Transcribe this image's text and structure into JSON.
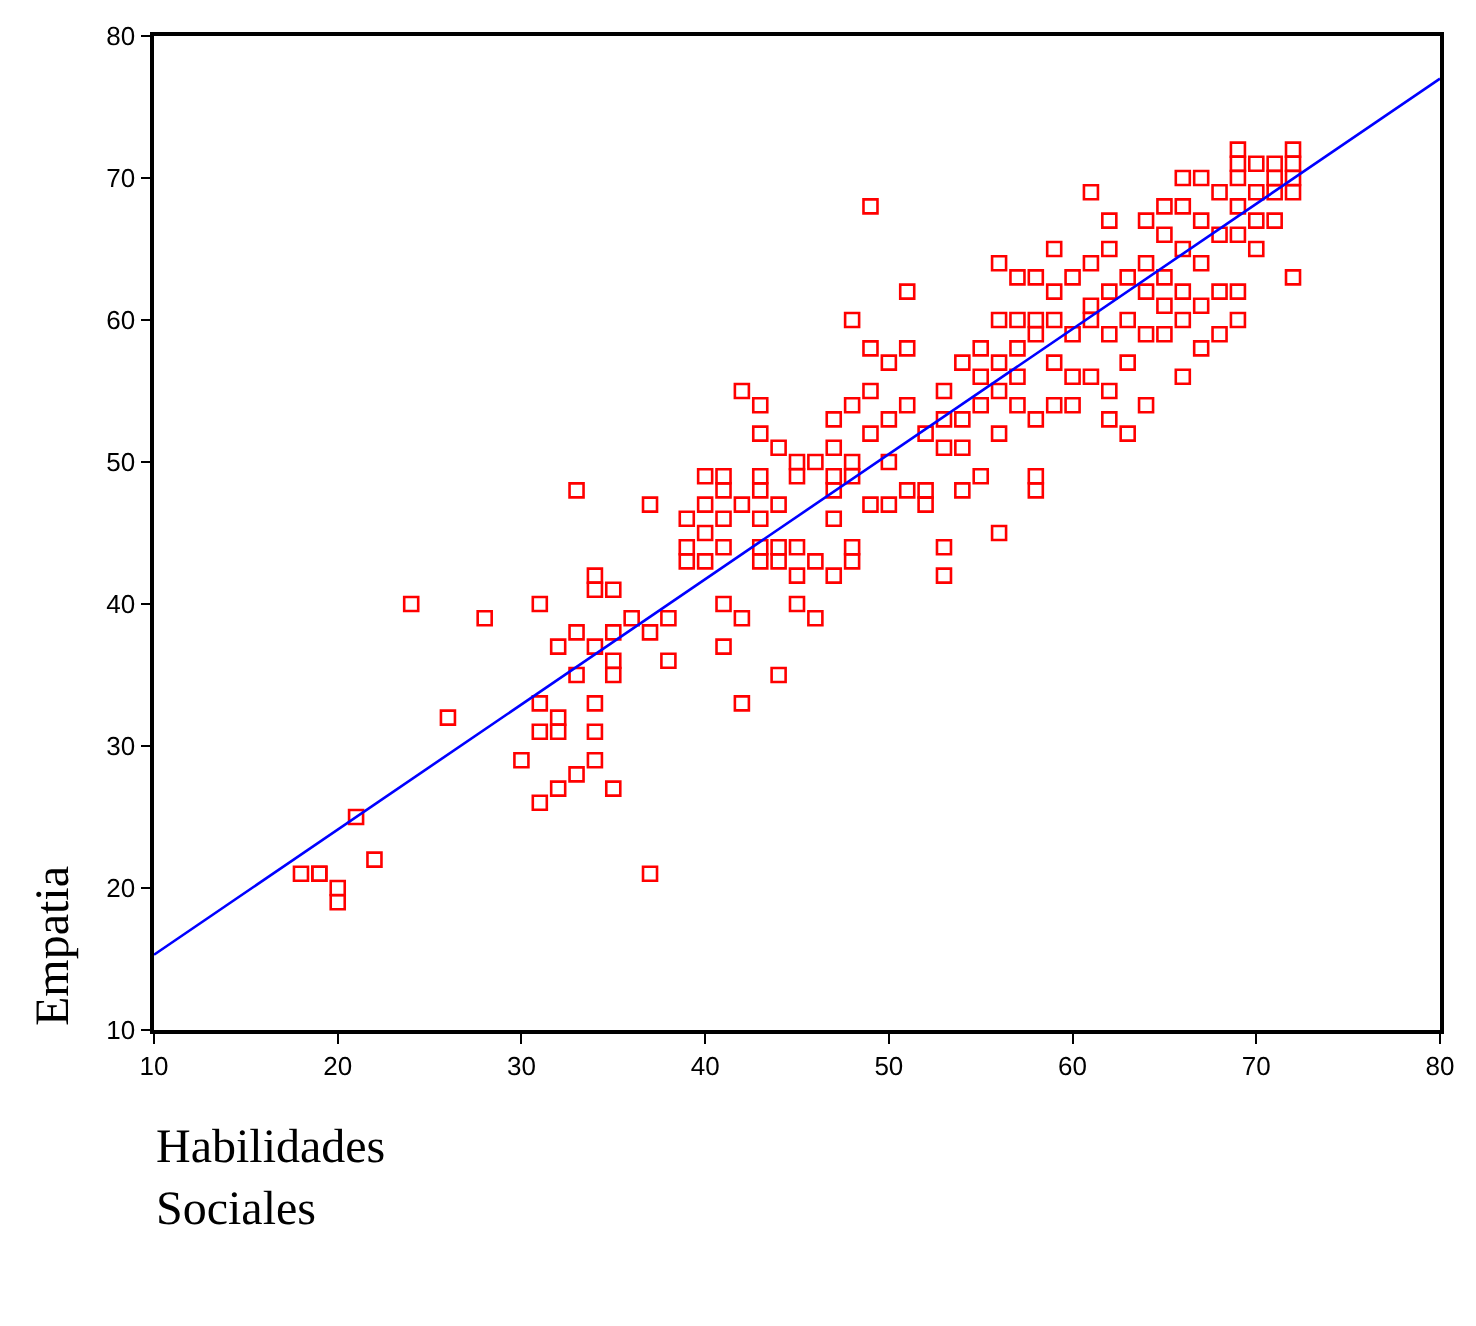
{
  "chart_data": {
    "type": "scatter",
    "xlabel": "Habilidades\nSociales",
    "ylabel": "Empatia",
    "xlim": [
      10,
      80
    ],
    "ylim": [
      10,
      80
    ],
    "xticks": [
      10,
      20,
      30,
      40,
      50,
      60,
      70,
      80
    ],
    "yticks": [
      10,
      20,
      30,
      40,
      50,
      60,
      70,
      80
    ],
    "marker": "square",
    "series": [
      {
        "color": "#ff0000",
        "x": [
          18,
          19,
          19,
          20,
          20,
          21,
          22,
          24,
          26,
          28,
          30,
          31,
          31,
          31,
          31,
          32,
          32,
          32,
          32,
          33,
          33,
          33,
          33,
          34,
          34,
          34,
          34,
          34,
          34,
          35,
          35,
          35,
          35,
          35,
          36,
          37,
          37,
          37,
          38,
          38,
          39,
          39,
          39,
          40,
          40,
          40,
          40,
          41,
          41,
          41,
          41,
          41,
          41,
          42,
          42,
          42,
          42,
          43,
          43,
          43,
          43,
          43,
          43,
          43,
          44,
          44,
          44,
          44,
          44,
          45,
          45,
          45,
          45,
          45,
          46,
          46,
          46,
          47,
          47,
          47,
          47,
          47,
          47,
          48,
          48,
          48,
          48,
          48,
          48,
          49,
          49,
          49,
          49,
          49,
          50,
          50,
          50,
          50,
          51,
          51,
          51,
          51,
          52,
          52,
          52,
          53,
          53,
          53,
          53,
          53,
          54,
          54,
          54,
          54,
          55,
          55,
          55,
          55,
          56,
          56,
          56,
          56,
          56,
          56,
          57,
          57,
          57,
          57,
          57,
          58,
          58,
          58,
          58,
          58,
          58,
          59,
          59,
          59,
          59,
          59,
          60,
          60,
          60,
          60,
          61,
          61,
          61,
          61,
          61,
          62,
          62,
          62,
          62,
          62,
          62,
          63,
          63,
          63,
          63,
          64,
          64,
          64,
          64,
          64,
          65,
          65,
          65,
          65,
          65,
          66,
          66,
          66,
          66,
          66,
          66,
          67,
          67,
          67,
          67,
          67,
          68,
          68,
          68,
          68,
          69,
          69,
          69,
          69,
          69,
          69,
          69,
          70,
          70,
          70,
          70,
          71,
          71,
          71,
          71,
          72,
          72,
          72,
          72,
          72
        ],
        "values": [
          21,
          21,
          21,
          20,
          19,
          25,
          22,
          40,
          32,
          39,
          29,
          40,
          33,
          31,
          26,
          37,
          32,
          31,
          27,
          48,
          38,
          35,
          28,
          42,
          41,
          37,
          33,
          31,
          29,
          41,
          38,
          36,
          35,
          27,
          39,
          47,
          38,
          21,
          39,
          36,
          46,
          44,
          43,
          49,
          47,
          45,
          43,
          49,
          48,
          46,
          44,
          40,
          37,
          55,
          47,
          39,
          33,
          54,
          52,
          49,
          48,
          46,
          44,
          43,
          51,
          47,
          44,
          43,
          35,
          50,
          49,
          44,
          42,
          40,
          50,
          43,
          39,
          53,
          51,
          49,
          48,
          46,
          42,
          60,
          54,
          50,
          49,
          44,
          43,
          68,
          58,
          55,
          52,
          47,
          57,
          53,
          50,
          47,
          62,
          58,
          54,
          48,
          52,
          48,
          47,
          55,
          53,
          51,
          44,
          42,
          57,
          53,
          51,
          48,
          58,
          56,
          54,
          49,
          64,
          60,
          57,
          55,
          52,
          45,
          63,
          60,
          58,
          56,
          54,
          63,
          60,
          59,
          53,
          49,
          48,
          65,
          62,
          60,
          57,
          54,
          63,
          59,
          56,
          54,
          69,
          64,
          61,
          60,
          56,
          67,
          65,
          62,
          59,
          55,
          53,
          63,
          60,
          57,
          52,
          67,
          64,
          62,
          59,
          54,
          68,
          66,
          63,
          61,
          59,
          70,
          68,
          65,
          62,
          60,
          56,
          70,
          67,
          64,
          61,
          58,
          69,
          66,
          62,
          59,
          72,
          71,
          70,
          68,
          66,
          62,
          60,
          71,
          69,
          67,
          65,
          71,
          70,
          69,
          67,
          72,
          71,
          70,
          69,
          63
        ]
      },
      {
        "type": "line",
        "color": "#0000ff",
        "marker": "none",
        "x": [
          10,
          80
        ],
        "values": [
          15.3,
          77
        ]
      }
    ]
  }
}
